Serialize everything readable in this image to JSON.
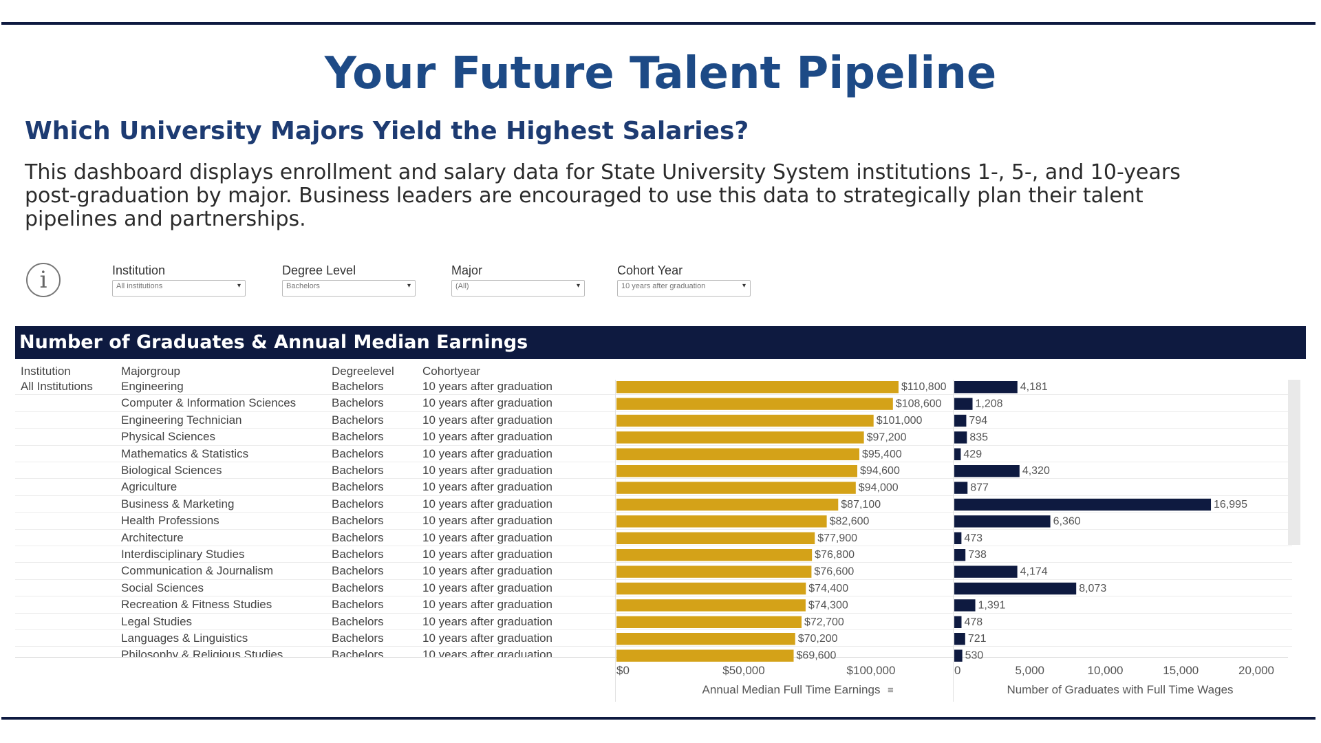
{
  "header": {
    "title": "Your Future Talent Pipeline",
    "subtitle": "Which University Majors Yield the Highest Salaries?",
    "description": "This dashboard displays enrollment and salary data for State University System institutions 1-, 5-, and 10-years post-graduation by major. Business leaders are encouraged to use this data to strategically plan their talent pipelines and partnerships."
  },
  "info_icon": "info-icon",
  "info_glyph": "i",
  "filters": [
    {
      "label": "Institution",
      "value": "All institutions"
    },
    {
      "label": "Degree Level",
      "value": "Bachelors"
    },
    {
      "label": "Major",
      "value": "(All)"
    },
    {
      "label": "Cohort Year",
      "value": "10 years after graduation"
    }
  ],
  "section_title": "Number of Graduates & Annual Median Earnings",
  "columns": [
    "Institution",
    "Majorgroup",
    "Degreelevel",
    "Cohortyear"
  ],
  "institution_value": "All Institutions",
  "degree_value": "Bachelors",
  "cohort_value": "10 years after graduation",
  "colors": {
    "earnings": "#d4a218",
    "graduates": "#0e1a40",
    "title": "#1d4a86"
  },
  "chart_data": [
    {
      "type": "bar",
      "orientation": "horizontal",
      "xlabel": "Annual Median Full Time Earnings",
      "xlim": [
        0,
        120000
      ],
      "x_ticks": [
        "$0",
        "$50,000",
        "$100,000"
      ],
      "categories": [
        "Engineering",
        "Computer & Information Sciences",
        "Engineering Technician",
        "Physical Sciences",
        "Mathematics & Statistics",
        "Biological Sciences",
        "Agriculture",
        "Business & Marketing",
        "Health Professions",
        "Architecture",
        "Interdisciplinary Studies",
        "Communication & Journalism",
        "Social Sciences",
        "Recreation & Fitness Studies",
        "Legal Studies",
        "Languages & Linguistics",
        "Philosophy & Religious Studies"
      ],
      "values": [
        110800,
        108600,
        101000,
        97200,
        95400,
        94600,
        94000,
        87100,
        82600,
        77900,
        76800,
        76600,
        74400,
        74300,
        72700,
        70200,
        69600
      ],
      "labels": [
        "$110,800",
        "$108,600",
        "$101,000",
        "$97,200",
        "$95,400",
        "$94,600",
        "$94,000",
        "$87,100",
        "$82,600",
        "$77,900",
        "$76,800",
        "$76,600",
        "$74,400",
        "$74,300",
        "$72,700",
        "$70,200",
        "$69,600"
      ]
    },
    {
      "type": "bar",
      "orientation": "horizontal",
      "xlabel": "Number of Graduates with Full Time Wages",
      "xlim": [
        0,
        20000
      ],
      "x_ticks": [
        "0",
        "5,000",
        "10,000",
        "15,000",
        "20,000"
      ],
      "categories": [
        "Engineering",
        "Computer & Information Sciences",
        "Engineering Technician",
        "Physical Sciences",
        "Mathematics & Statistics",
        "Biological Sciences",
        "Agriculture",
        "Business & Marketing",
        "Health Professions",
        "Architecture",
        "Interdisciplinary Studies",
        "Communication & Journalism",
        "Social Sciences",
        "Recreation & Fitness Studies",
        "Legal Studies",
        "Languages & Linguistics",
        "Philosophy & Religious Studies"
      ],
      "values": [
        4181,
        1208,
        794,
        835,
        429,
        4320,
        877,
        16995,
        6360,
        473,
        738,
        4174,
        8073,
        1391,
        478,
        721,
        530
      ],
      "labels": [
        "4,181",
        "1,208",
        "794",
        "835",
        "429",
        "4,320",
        "877",
        "16,995",
        "6,360",
        "473",
        "738",
        "4,174",
        "8,073",
        "1,391",
        "478",
        "721",
        "530"
      ]
    }
  ]
}
